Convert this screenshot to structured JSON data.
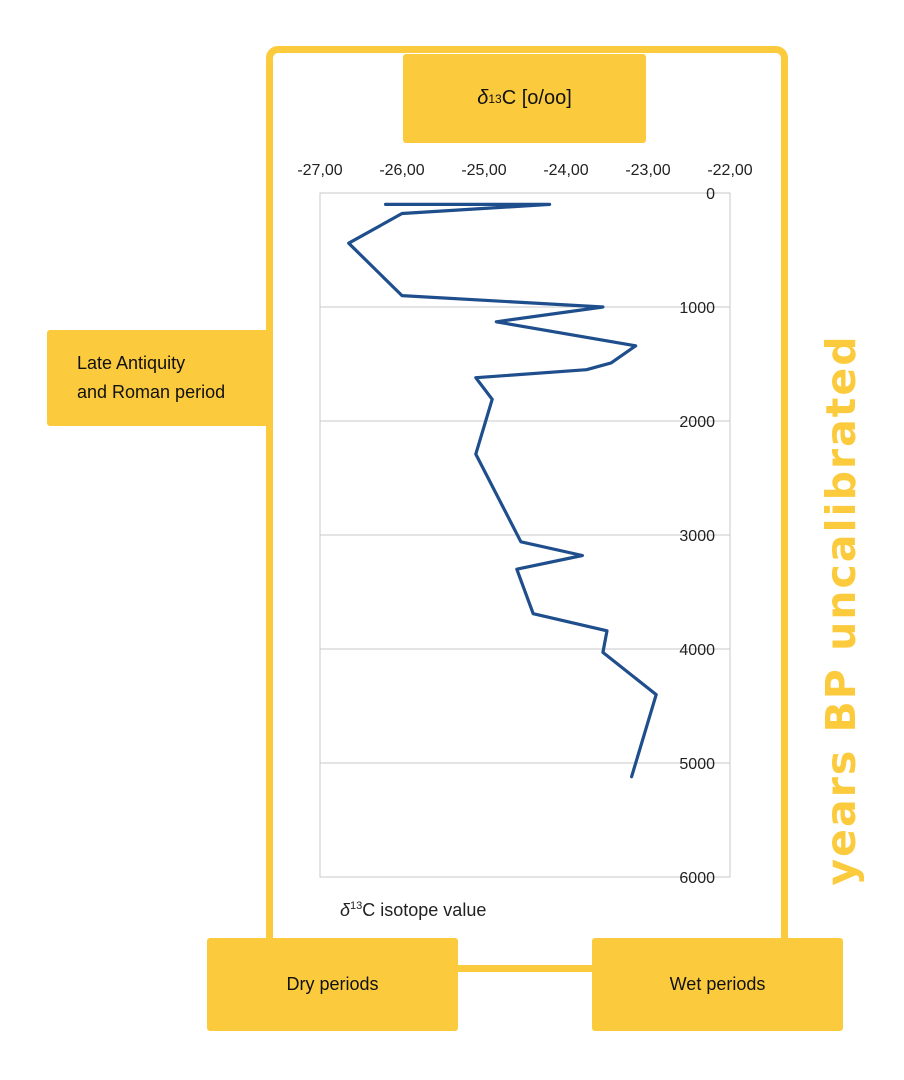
{
  "header_box": {
    "delta": "δ",
    "sup": "13",
    "rest": "C [o/oo]"
  },
  "left_box": {
    "line1": "Late Antiquity",
    "line2": "and Roman period"
  },
  "dry_label": "Dry periods",
  "wet_label": "Wet periods",
  "side_title": "years BP uncalibrated",
  "isotope_label": {
    "delta": "δ",
    "sup": "13",
    "rest": "C isotope value"
  },
  "colors": {
    "accent": "#fccb3d",
    "line": "#1f4e8c",
    "grid": "#c8c8c8"
  },
  "chart_data": {
    "type": "line",
    "x_axis_position": "top",
    "xlim": [
      -27,
      -22
    ],
    "ylim": [
      6000,
      0
    ],
    "y_reversed": true,
    "x_ticks": [
      "-27,00",
      "-26,00",
      "-25,00",
      "-24,00",
      "-23,00",
      "-22,00"
    ],
    "y_ticks": [
      "0",
      "1000",
      "2000",
      "3000",
      "4000",
      "5000",
      "6000"
    ],
    "grid": "horizontal",
    "series": [
      {
        "x": [
          -26.2,
          -24.2,
          -26.0,
          -26.65,
          -26.0,
          -23.55,
          -24.85,
          -23.15,
          -23.45,
          -23.75,
          -25.1,
          -24.9,
          -25.1,
          -24.55,
          -23.8,
          -24.6,
          -24.4,
          -23.5,
          -23.55,
          -22.9,
          -23.2
        ],
        "y": [
          100,
          100,
          180,
          440,
          900,
          1000,
          1130,
          1340,
          1490,
          1550,
          1620,
          1810,
          2290,
          3060,
          3180,
          3300,
          3690,
          3840,
          4030,
          4400,
          5120
        ]
      }
    ]
  }
}
